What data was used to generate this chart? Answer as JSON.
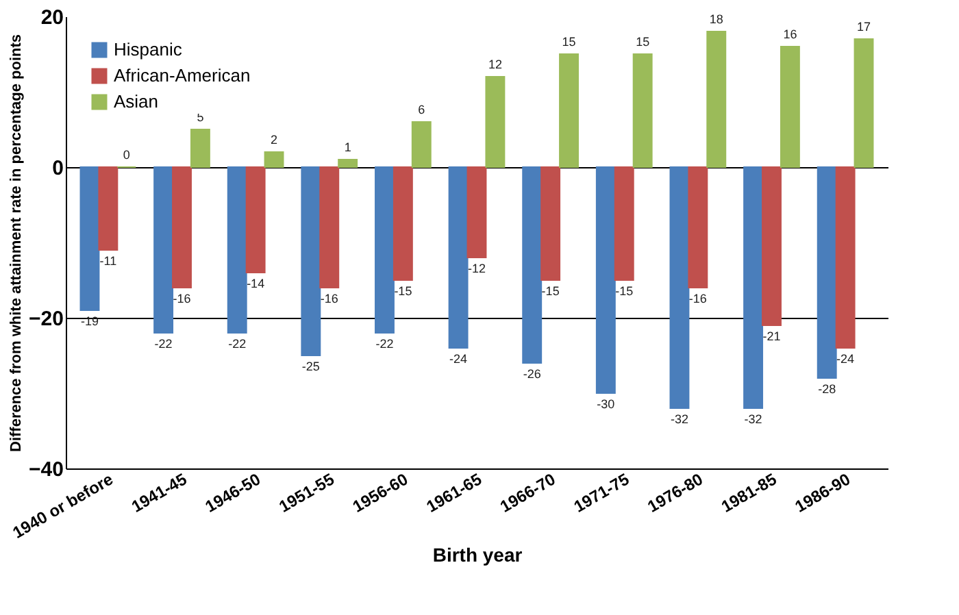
{
  "chart_data": {
    "type": "bar",
    "xlabel": "Birth year",
    "ylabel": "Difference from white attainment rate in percentage points",
    "categories": [
      "1940 or before",
      "1941-45",
      "1946-50",
      "1951-55",
      "1956-60",
      "1961-65",
      "1966-70",
      "1971-75",
      "1976-80",
      "1981-85",
      "1986-90"
    ],
    "series": [
      {
        "name": "Hispanic",
        "color": "#4a7ebb",
        "values": [
          -19,
          -22,
          -22,
          -25,
          -22,
          -24,
          -26,
          -30,
          -32,
          -32,
          -28
        ]
      },
      {
        "name": "African-American",
        "color": "#c0504d",
        "values": [
          -11,
          -16,
          -14,
          -16,
          -15,
          -12,
          -15,
          -15,
          -16,
          -21,
          -24
        ]
      },
      {
        "name": "Asian",
        "color": "#9bbb59",
        "values": [
          0,
          5,
          2,
          1,
          6,
          12,
          15,
          15,
          18,
          16,
          17
        ]
      }
    ],
    "ylim": [
      -40,
      20
    ],
    "yticks": [
      -40,
      -20,
      0,
      20
    ],
    "grid": "y",
    "legend": "top left",
    "data_labels": true
  }
}
